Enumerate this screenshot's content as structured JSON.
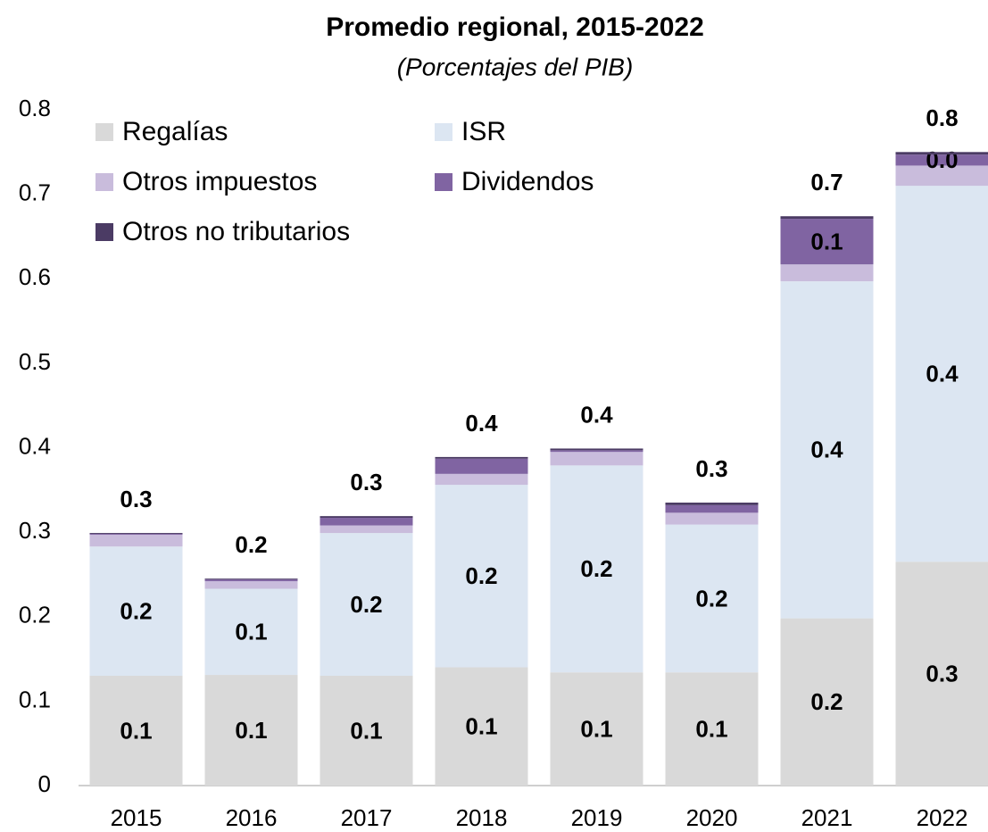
{
  "chart_data": {
    "type": "stacked_bar",
    "title": "Promedio regional, 2015-2022",
    "subtitle": "(Porcentajes del PIB)",
    "categories": [
      "2015",
      "2016",
      "2017",
      "2018",
      "2019",
      "2020",
      "2021",
      "2022"
    ],
    "series": [
      {
        "name": "Regalías",
        "color": "#d9d9d9",
        "values": [
          0.13,
          0.131,
          0.13,
          0.14,
          0.134,
          0.134,
          0.198,
          0.265
        ],
        "value_labels": [
          "0.1",
          "0.1",
          "0.1",
          "0.1",
          "0.1",
          "0.1",
          "0.2",
          "0.3"
        ]
      },
      {
        "name": "ISR",
        "color": "#dce6f2",
        "values": [
          0.153,
          0.102,
          0.169,
          0.216,
          0.245,
          0.175,
          0.399,
          0.445
        ],
        "value_labels": [
          "0.2",
          "0.1",
          "0.2",
          "0.2",
          "0.2",
          "0.2",
          "0.4",
          "0.4"
        ]
      },
      {
        "name": "Otros impuestos",
        "color": "#c9bcdc",
        "values": [
          0.014,
          0.009,
          0.009,
          0.013,
          0.016,
          0.014,
          0.02,
          0.024
        ]
      },
      {
        "name": "Dividendos",
        "color": "#8064a2",
        "values": [
          0.001,
          0.002,
          0.009,
          0.018,
          0.002,
          0.009,
          0.054,
          0.013
        ],
        "value_labels": [
          null,
          null,
          null,
          null,
          null,
          null,
          "0.1",
          "0.0"
        ]
      },
      {
        "name": "Otros no tributarios",
        "color": "#4b3b64",
        "values": [
          0.001,
          0.001,
          0.002,
          0.002,
          0.002,
          0.003,
          0.003,
          0.003
        ]
      }
    ],
    "total_labels": [
      "0.3",
      "0.2",
      "0.3",
      "0.4",
      "0.4",
      "0.3",
      "0.7",
      "0.8"
    ],
    "ylim": [
      0,
      0.8
    ],
    "yticks": [
      0,
      0.1,
      0.2,
      0.3,
      0.4,
      0.5,
      0.6,
      0.7,
      0.8
    ],
    "grid": false,
    "legend": "upper left"
  }
}
